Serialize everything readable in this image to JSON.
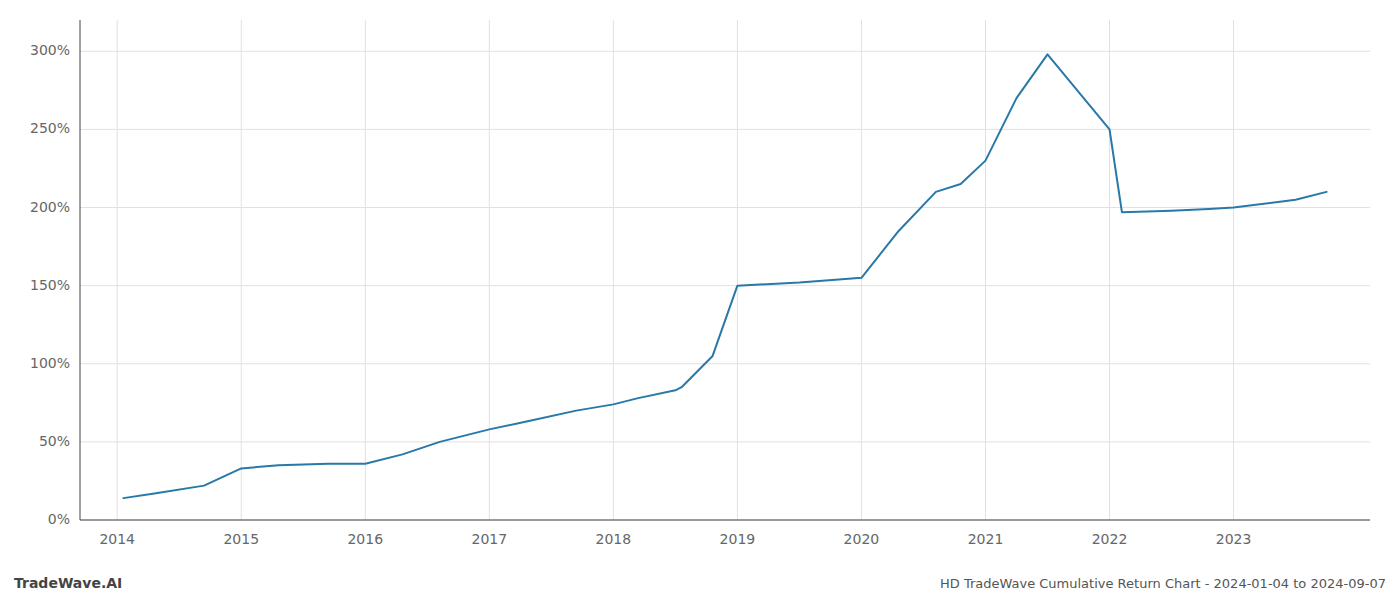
{
  "chart_data": {
    "type": "line",
    "title": "HD TradeWave Cumulative Return Chart - 2024-01-04 to 2024-09-07",
    "annotations": [
      "TradeWave.AI"
    ],
    "color": "#2878a8",
    "grid": true,
    "x": [
      2014.05,
      2014.3,
      2014.7,
      2015.0,
      2015.3,
      2015.7,
      2016.0,
      2016.3,
      2016.6,
      2017.0,
      2017.3,
      2017.7,
      2018.0,
      2018.2,
      2018.5,
      2018.55,
      2018.8,
      2019.0,
      2019.5,
      2020.0,
      2020.3,
      2020.6,
      2020.8,
      2021.0,
      2021.25,
      2021.5,
      2022.0,
      2022.1,
      2022.5,
      2022.8,
      2023.0,
      2023.5,
      2023.75
    ],
    "values": [
      14,
      17,
      22,
      33,
      35,
      36,
      36,
      42,
      50,
      58,
      63,
      70,
      74,
      78,
      83,
      85,
      105,
      150,
      152,
      155,
      185,
      210,
      215,
      230,
      270,
      298,
      250,
      197,
      198,
      199,
      200,
      205,
      210
    ],
    "xlim": [
      2013.7,
      2024.1
    ],
    "xticks": [
      2014,
      2015,
      2016,
      2017,
      2018,
      2019,
      2020,
      2021,
      2022,
      2023
    ],
    "ylim": [
      0,
      320
    ],
    "yticks": [
      {
        "value": 0,
        "label": "0%"
      },
      {
        "value": 50,
        "label": "50%"
      },
      {
        "value": 100,
        "label": "100%"
      },
      {
        "value": 150,
        "label": "150%"
      },
      {
        "value": 200,
        "label": "200%"
      },
      {
        "value": 250,
        "label": "250%"
      },
      {
        "value": 300,
        "label": "300%"
      }
    ]
  }
}
